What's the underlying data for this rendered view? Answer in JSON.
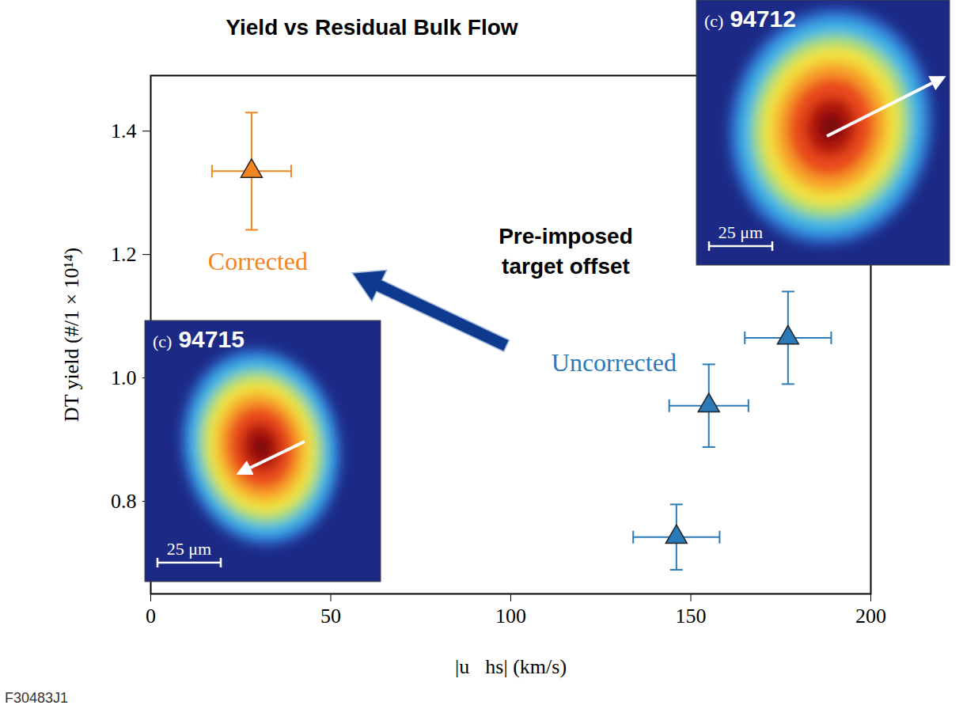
{
  "chart_data": {
    "type": "scatter",
    "title": "Yield vs Residual Bulk Flow",
    "x_label": "|u⃗hs| (km/s)",
    "y_label": "DT yield (#/1 × 10¹⁴)",
    "xlim": [
      0,
      200
    ],
    "xticks": [
      0,
      50,
      100,
      150,
      200
    ],
    "ylim": [
      0.65,
      1.49
    ],
    "yticks": [
      0.8,
      {
        "value": 1,
        "label": "1.0"
      },
      1.2,
      1.4
    ],
    "grid": false,
    "series": [
      {
        "name": "Corrected",
        "color": "#f28522",
        "marker": "triangle",
        "x": [
          28
        ],
        "values": [
          1.335
        ],
        "x_error": [
          11
        ],
        "y_error": [
          0.095
        ]
      },
      {
        "name": "Uncorrected",
        "color": "#2a7ab8",
        "marker": "triangle",
        "x": [
          146,
          155,
          177
        ],
        "values": [
          0.742,
          0.955,
          1.065
        ],
        "x_error": [
          12,
          11,
          12
        ],
        "y_error": [
          0.053,
          0.067,
          0.075
        ]
      }
    ],
    "annotations": [
      {
        "text": "Pre-imposed target offset",
        "color": "#0d3a8c"
      }
    ],
    "insets": [
      {
        "panel": "(c)",
        "shot": "94712",
        "scale_bar": "25 μm"
      },
      {
        "panel": "(c)",
        "shot": "94715",
        "scale_bar": "25 μm"
      }
    ],
    "footnote": "F30483J1"
  }
}
